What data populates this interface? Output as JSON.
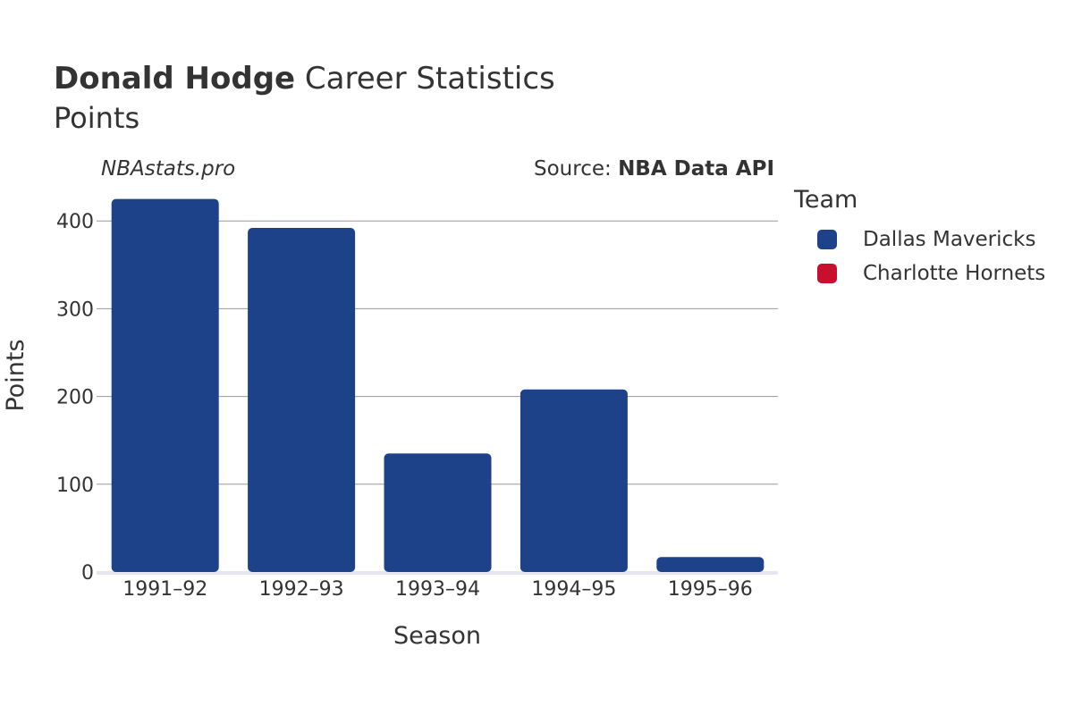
{
  "header": {
    "title_bold": "Donald Hodge",
    "title_rest": "Career Statistics",
    "subtitle": "Points",
    "watermark": "NBAstats.pro",
    "source_prefix": "Source: ",
    "source_bold": "NBA Data API"
  },
  "legend": {
    "title": "Team",
    "items": [
      {
        "label": "Dallas Mavericks",
        "color": "#1d428a"
      },
      {
        "label": "Charlotte Hornets",
        "color": "#c8102e"
      }
    ]
  },
  "chart_data": {
    "type": "bar",
    "categories": [
      "1991–92",
      "1992–93",
      "1993–94",
      "1994–95",
      "1995–96"
    ],
    "series": [
      {
        "name": "Dallas Mavericks",
        "color": "#1d428a",
        "values": [
          425,
          392,
          135,
          208,
          17
        ]
      }
    ],
    "xlabel": "Season",
    "ylabel": "Points",
    "ylim": [
      0,
      425
    ],
    "yticks": [
      0,
      100,
      200,
      300,
      400
    ],
    "grid": true
  }
}
